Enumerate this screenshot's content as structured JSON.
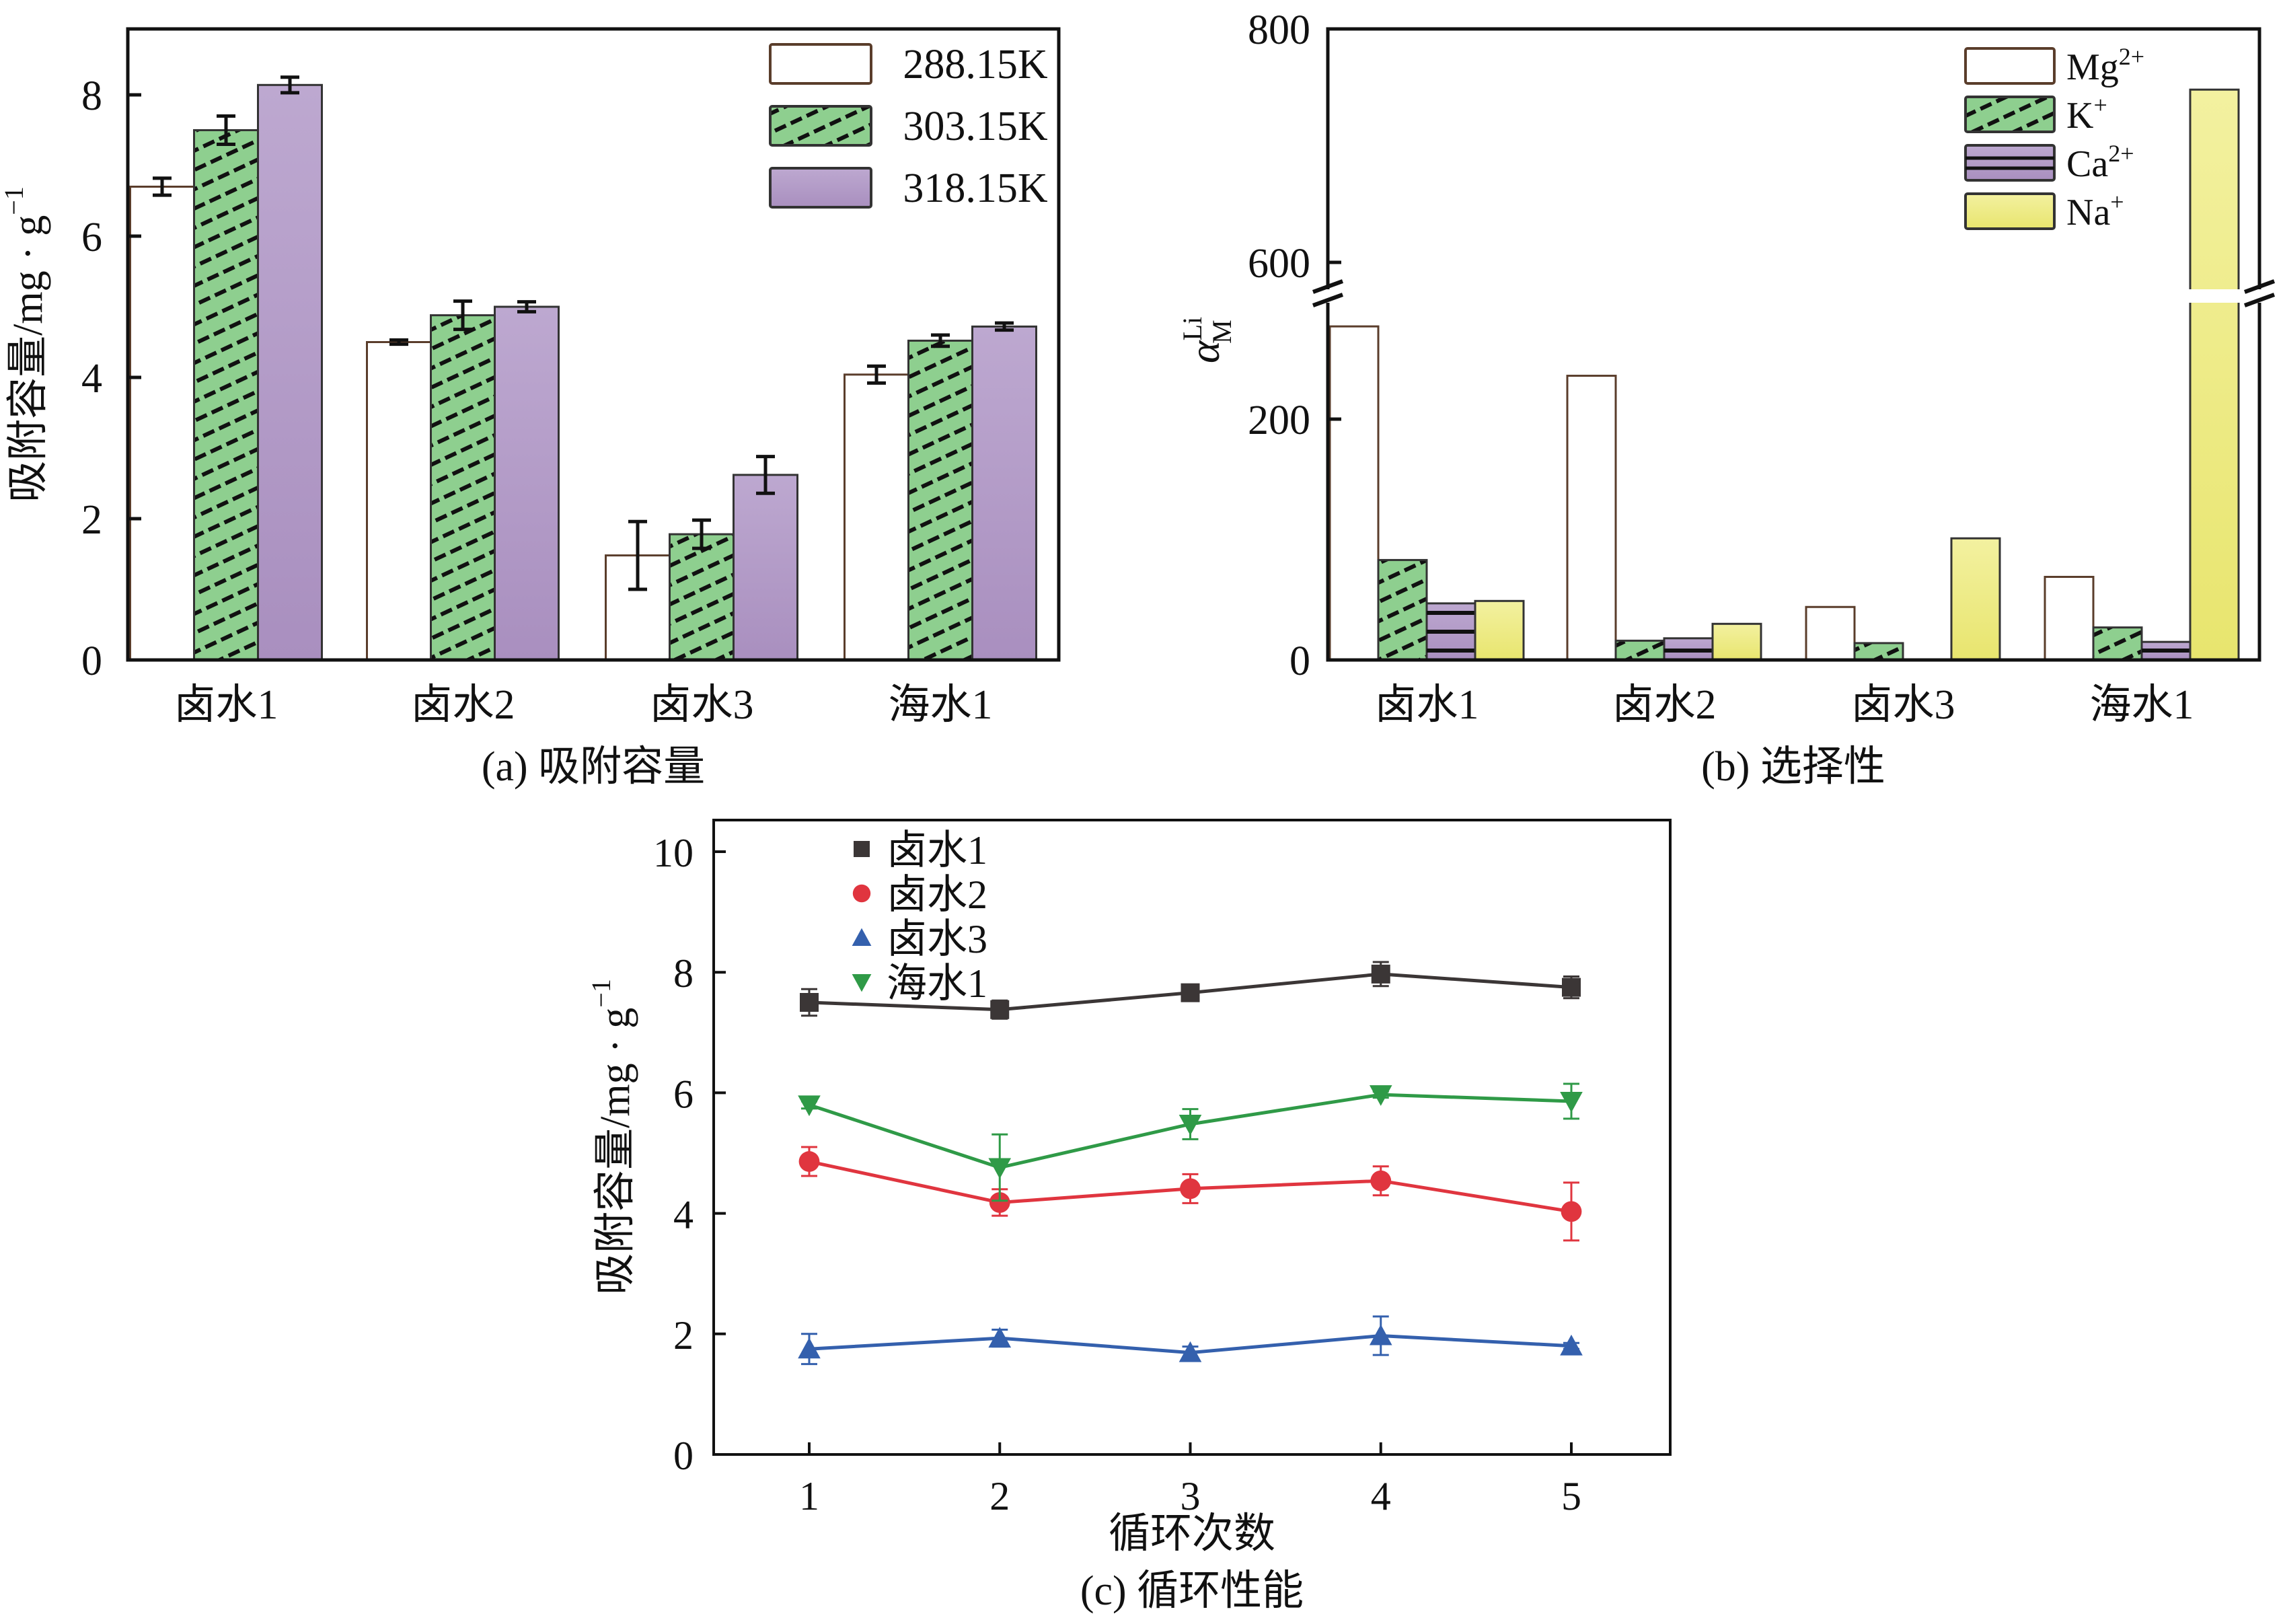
{
  "figure": {
    "colors": {
      "white_bar": "#ffffff",
      "white_bar_edge": "#5a3d2b",
      "green": "#8ecf8f",
      "purple": "#b49ec8",
      "yellow": "#eeec82",
      "hatch": "#111111",
      "series_black": "#3b3636",
      "series_red": "#e0353f",
      "series_blue": "#3460ad",
      "series_green": "#2f9a47"
    }
  },
  "chart_data": [
    {
      "id": "a",
      "type": "bar",
      "caption": "(a) 吸附容量",
      "title": "",
      "xlabel": "",
      "ylabel": "吸附容量/mg · g",
      "ylabel_sup": "−1",
      "ylim": [
        0,
        9
      ],
      "yticks": [
        0,
        2,
        4,
        6,
        8
      ],
      "grid": false,
      "legend_position": "top-right",
      "categories": [
        "卤水1",
        "卤水2",
        "卤水3",
        "海水1"
      ],
      "series": [
        {
          "name": "288.15K",
          "style": "white",
          "values": [
            6.7,
            4.5,
            1.48,
            4.04
          ],
          "errors": [
            0.12,
            0.03,
            0.48,
            0.12
          ]
        },
        {
          "name": "303.15K",
          "style": "green-hatch",
          "values": [
            7.5,
            4.88,
            1.78,
            4.52
          ],
          "errors": [
            0.2,
            0.2,
            0.2,
            0.08
          ]
        },
        {
          "name": "318.15K",
          "style": "purple",
          "values": [
            8.14,
            5.0,
            2.62,
            4.72
          ],
          "errors": [
            0.11,
            0.07,
            0.26,
            0.05
          ]
        }
      ]
    },
    {
      "id": "b",
      "type": "bar",
      "caption": "(b) 选择性",
      "title": "",
      "xlabel": "",
      "ylabel": "α",
      "ylabel_sup": "Li",
      "ylabel_sub": "M",
      "y_break": [
        302,
        575
      ],
      "ylim": [
        0,
        800
      ],
      "yticks": [
        0,
        200,
        600,
        800
      ],
      "grid": false,
      "legend_position": "top-right",
      "categories": [
        "卤水1",
        "卤水2",
        "卤水3",
        "海水1"
      ],
      "series": [
        {
          "name": "Mg",
          "sup": "2+",
          "style": "white",
          "values": [
            277,
            236,
            44,
            69
          ]
        },
        {
          "name": "K",
          "sup": "+",
          "style": "green-hatch",
          "values": [
            83,
            16,
            14,
            27
          ]
        },
        {
          "name": "Ca",
          "sup": "2+",
          "style": "purple-lines",
          "values": [
            47,
            18,
            0.5,
            15
          ]
        },
        {
          "name": "Na",
          "sup": "+",
          "style": "yellow",
          "values": [
            49,
            30,
            101,
            748
          ]
        }
      ]
    },
    {
      "id": "c",
      "type": "line",
      "caption": "(c) 循环性能",
      "title": "",
      "xlabel": "循环次数",
      "ylabel": "吸附容量/mg · g",
      "ylabel_sup": "−1",
      "xlim": [
        0.5,
        5.5
      ],
      "ylim": [
        0,
        10.5
      ],
      "xticks": [
        1,
        2,
        3,
        4,
        5
      ],
      "yticks": [
        0,
        2,
        4,
        6,
        8,
        10
      ],
      "grid": false,
      "legend_position": "top-left",
      "x": [
        1,
        2,
        3,
        4,
        5
      ],
      "series": [
        {
          "name": "卤水1",
          "marker": "square",
          "color_key": "series_black",
          "values": [
            7.5,
            7.38,
            7.66,
            7.97,
            7.75
          ],
          "errors": [
            0.22,
            0.15,
            0.05,
            0.2,
            0.18
          ]
        },
        {
          "name": "卤水2",
          "marker": "circle",
          "color_key": "series_red",
          "values": [
            4.86,
            4.18,
            4.41,
            4.54,
            4.03
          ],
          "errors": [
            0.24,
            0.22,
            0.24,
            0.24,
            0.48
          ]
        },
        {
          "name": "卤水3",
          "marker": "triangle-up",
          "color_key": "series_blue",
          "values": [
            1.75,
            1.93,
            1.69,
            1.97,
            1.8
          ],
          "errors": [
            0.25,
            0.14,
            0.1,
            0.32,
            0.05
          ]
        },
        {
          "name": "海水1",
          "marker": "triangle-down",
          "color_key": "series_green",
          "values": [
            5.8,
            4.76,
            5.48,
            5.97,
            5.86
          ],
          "errors": [
            0.06,
            0.55,
            0.25,
            0.05,
            0.29
          ]
        }
      ]
    }
  ]
}
